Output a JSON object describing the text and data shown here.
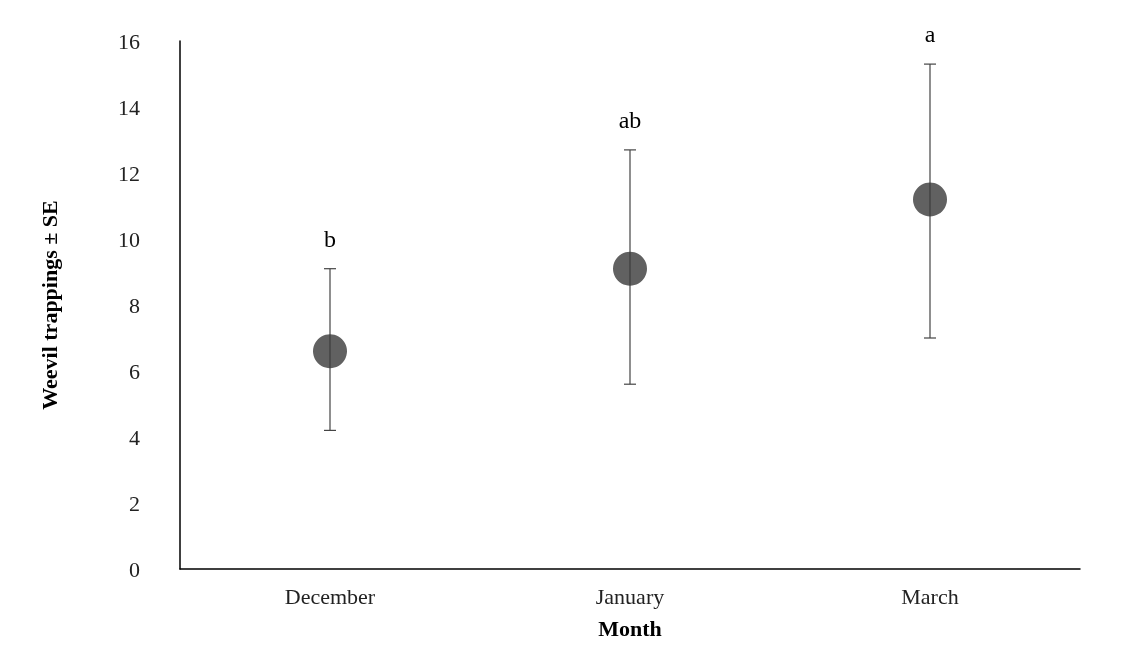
{
  "chart_data": {
    "type": "scatter",
    "xlabel": "Month",
    "ylabel": "Weevil trappings ± SE",
    "categories": [
      "December",
      "January",
      "March"
    ],
    "series": [
      {
        "color": "#3a3a3a",
        "values": [
          6.6,
          9.1,
          11.2
        ],
        "errors": [
          [
            4.2,
            9.1
          ],
          [
            5.6,
            12.7
          ],
          [
            7.0,
            15.3
          ]
        ]
      }
    ],
    "ylim": [
      0,
      16
    ],
    "yticks": [
      0,
      2,
      4,
      6,
      8,
      10,
      12,
      14,
      16
    ],
    "grid": false,
    "marker": "circle",
    "annotations": [
      "b",
      "ab",
      "a"
    ]
  }
}
